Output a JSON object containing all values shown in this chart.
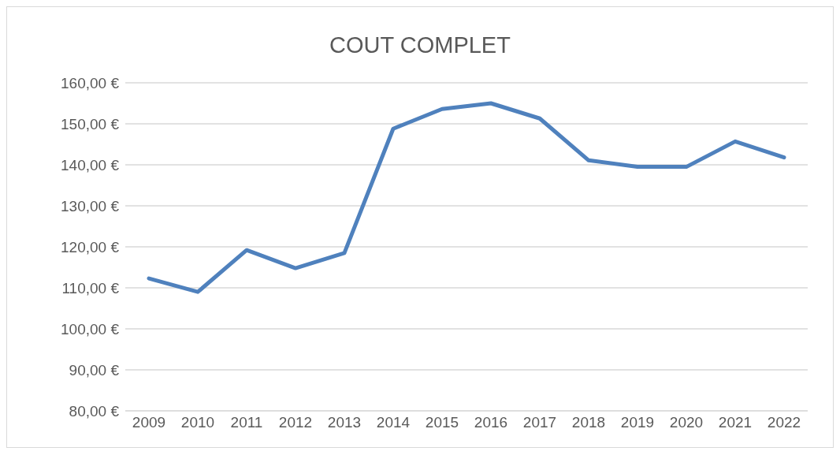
{
  "chart_data": {
    "type": "line",
    "title": "COUT COMPLET",
    "categories": [
      "2009",
      "2010",
      "2011",
      "2012",
      "2013",
      "2014",
      "2015",
      "2016",
      "2017",
      "2018",
      "2019",
      "2020",
      "2021",
      "2022"
    ],
    "series": [
      {
        "color": "#4f81bd",
        "values": [
          112.3,
          109.0,
          119.2,
          114.8,
          118.5,
          148.8,
          153.6,
          155.0,
          151.3,
          141.1,
          139.5,
          139.5,
          145.7,
          141.8
        ]
      }
    ],
    "ylim": [
      80,
      160
    ],
    "yticks": [
      {
        "value": 80,
        "label": "80,00 €"
      },
      {
        "value": 90,
        "label": "90,00 €"
      },
      {
        "value": 100,
        "label": "100,00 €"
      },
      {
        "value": 110,
        "label": "110,00 €"
      },
      {
        "value": 120,
        "label": "120,00 €"
      },
      {
        "value": 130,
        "label": "130,00 €"
      },
      {
        "value": 140,
        "label": "140,00 €"
      },
      {
        "value": 150,
        "label": "150,00 €"
      },
      {
        "value": 160,
        "label": "160,00 €"
      }
    ],
    "grid": "y",
    "legend": false,
    "marker": "none",
    "line_style": "solid"
  }
}
